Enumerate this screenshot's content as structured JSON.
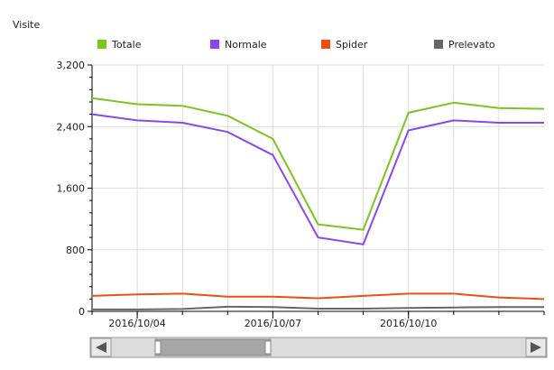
{
  "colors": {
    "totale": "#7ac51f",
    "normale": "#8a47f0",
    "spider": "#ee4f10",
    "prelevato": "#666666",
    "axis": "#000000",
    "grid": "#dddddd",
    "scrollbar_track": "#dcdcdc",
    "scrollbar_thumb": "#a6a6a6"
  },
  "chart_data": {
    "type": "line",
    "title": "",
    "ylabel": "Visite",
    "xlabel": "",
    "ylim": [
      0,
      3200
    ],
    "yticks": [
      0,
      800,
      1600,
      2400,
      3200
    ],
    "ytick_labels": [
      "0",
      "800",
      "1,600",
      "2,400",
      "3,200"
    ],
    "grid": true,
    "legend_position": "top",
    "x": [
      "2016-10-04",
      "2016-10-05",
      "2016-10-06",
      "2016-10-07",
      "2016-10-08",
      "2016-10-09",
      "2016-10-10",
      "2016-10-11",
      "2016-10-12",
      "2016-10-13"
    ],
    "x_domain": [
      "2016-10-03",
      "2016-10-13"
    ],
    "xticks": [
      "2016-10-04",
      "2016-10-07",
      "2016-10-10"
    ],
    "xtick_labels": [
      "2016/10/04",
      "2016/10/07",
      "2016/10/10"
    ],
    "series": [
      {
        "name": "Totale",
        "color": "#7ac51f",
        "x": [
          "2016-10-03",
          "2016-10-04",
          "2016-10-05",
          "2016-10-06",
          "2016-10-07",
          "2016-10-08",
          "2016-10-09",
          "2016-10-10",
          "2016-10-11",
          "2016-10-12",
          "2016-10-13"
        ],
        "values": [
          2770,
          2690,
          2670,
          2540,
          2240,
          1130,
          1060,
          2580,
          2710,
          2640,
          2630
        ]
      },
      {
        "name": "Normale",
        "color": "#8a47f0",
        "x": [
          "2016-10-03",
          "2016-10-04",
          "2016-10-05",
          "2016-10-06",
          "2016-10-07",
          "2016-10-08",
          "2016-10-09",
          "2016-10-10",
          "2016-10-11",
          "2016-10-12",
          "2016-10-13"
        ],
        "values": [
          2560,
          2480,
          2450,
          2330,
          2030,
          960,
          870,
          2350,
          2480,
          2450,
          2450
        ]
      },
      {
        "name": "Spider",
        "color": "#ee4f10",
        "x": [
          "2016-10-03",
          "2016-10-04",
          "2016-10-05",
          "2016-10-06",
          "2016-10-07",
          "2016-10-08",
          "2016-10-09",
          "2016-10-10",
          "2016-10-11",
          "2016-10-12",
          "2016-10-13"
        ],
        "values": [
          200,
          220,
          230,
          190,
          190,
          170,
          200,
          230,
          230,
          180,
          160
        ]
      },
      {
        "name": "Prelevato",
        "color": "#666666",
        "x": [
          "2016-10-03",
          "2016-10-04",
          "2016-10-05",
          "2016-10-06",
          "2016-10-07",
          "2016-10-08",
          "2016-10-09",
          "2016-10-10",
          "2016-10-11",
          "2016-10-12",
          "2016-10-13"
        ],
        "values": [
          25,
          25,
          30,
          60,
          55,
          35,
          35,
          45,
          50,
          55,
          55
        ]
      }
    ]
  }
}
